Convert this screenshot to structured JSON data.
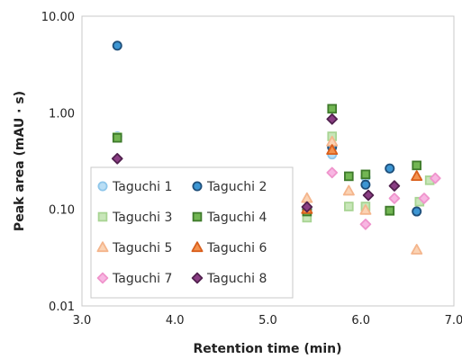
{
  "chart_data": {
    "type": "scatter",
    "xlabel": "Retention time (min)",
    "ylabel": "Peak area (mAU · s)",
    "xlim": [
      3.0,
      7.0
    ],
    "ylim": [
      0.01,
      10.0
    ],
    "y_scale": "log",
    "x_ticks": [
      "3.0",
      "4.0",
      "5.0",
      "6.0",
      "7.0"
    ],
    "y_ticks": [
      "0.01",
      "0.10",
      "1.00",
      "10.00"
    ],
    "grid": false,
    "legend_position": "bottom-left",
    "series": [
      {
        "name": "Taguchi 1",
        "marker": "circle",
        "fill": "#b9def5",
        "stroke": "#8ec6ea",
        "points": [
          [
            3.38,
            0.57
          ],
          [
            5.42,
            0.1
          ],
          [
            5.69,
            0.37
          ],
          [
            6.05,
            0.215
          ],
          [
            6.31,
            0.265
          ]
        ]
      },
      {
        "name": "Taguchi 2",
        "marker": "circle",
        "fill": "#3d96d3",
        "stroke": "#1f4f7a",
        "points": [
          [
            3.38,
            4.95
          ],
          [
            5.42,
            0.1
          ],
          [
            5.69,
            0.44
          ],
          [
            6.05,
            0.18
          ],
          [
            6.31,
            0.265
          ],
          [
            6.6,
            0.095
          ]
        ]
      },
      {
        "name": "Taguchi 3",
        "marker": "square",
        "fill": "#c8e6b9",
        "stroke": "#a8d493",
        "points": [
          [
            3.38,
            0.56
          ],
          [
            5.42,
            0.082
          ],
          [
            5.69,
            0.57
          ],
          [
            5.87,
            0.107
          ],
          [
            6.05,
            0.107
          ],
          [
            6.31,
            0.096
          ],
          [
            6.63,
            0.12
          ],
          [
            6.74,
            0.2
          ]
        ]
      },
      {
        "name": "Taguchi 4",
        "marker": "square",
        "fill": "#72b653",
        "stroke": "#3e7a2b",
        "points": [
          [
            3.38,
            0.55
          ],
          [
            5.42,
            0.095
          ],
          [
            5.69,
            1.1
          ],
          [
            5.87,
            0.22
          ],
          [
            6.05,
            0.23
          ],
          [
            6.31,
            0.097
          ],
          [
            6.6,
            0.285
          ]
        ]
      },
      {
        "name": "Taguchi 5",
        "marker": "triangle",
        "fill": "#fbd3b4",
        "stroke": "#f4b58c",
        "points": [
          [
            5.42,
            0.13
          ],
          [
            5.69,
            0.5
          ],
          [
            5.87,
            0.155
          ],
          [
            6.05,
            0.098
          ],
          [
            6.6,
            0.038
          ]
        ]
      },
      {
        "name": "Taguchi 6",
        "marker": "triangle",
        "fill": "#f4924e",
        "stroke": "#d95f1c",
        "points": [
          [
            5.42,
            0.1
          ],
          [
            5.69,
            0.41
          ],
          [
            6.6,
            0.22
          ]
        ]
      },
      {
        "name": "Taguchi 7",
        "marker": "diamond",
        "fill": "#f8b6e2",
        "stroke": "#ef94cc",
        "points": [
          [
            5.69,
            0.24
          ],
          [
            6.05,
            0.07
          ],
          [
            6.36,
            0.13
          ],
          [
            6.68,
            0.13
          ],
          [
            6.8,
            0.21
          ]
        ]
      },
      {
        "name": "Taguchi 8",
        "marker": "diamond",
        "fill": "#8a3e84",
        "stroke": "#51214e",
        "points": [
          [
            3.38,
            0.335
          ],
          [
            5.42,
            0.106
          ],
          [
            5.69,
            0.86
          ],
          [
            6.08,
            0.14
          ],
          [
            6.36,
            0.175
          ]
        ]
      }
    ]
  }
}
